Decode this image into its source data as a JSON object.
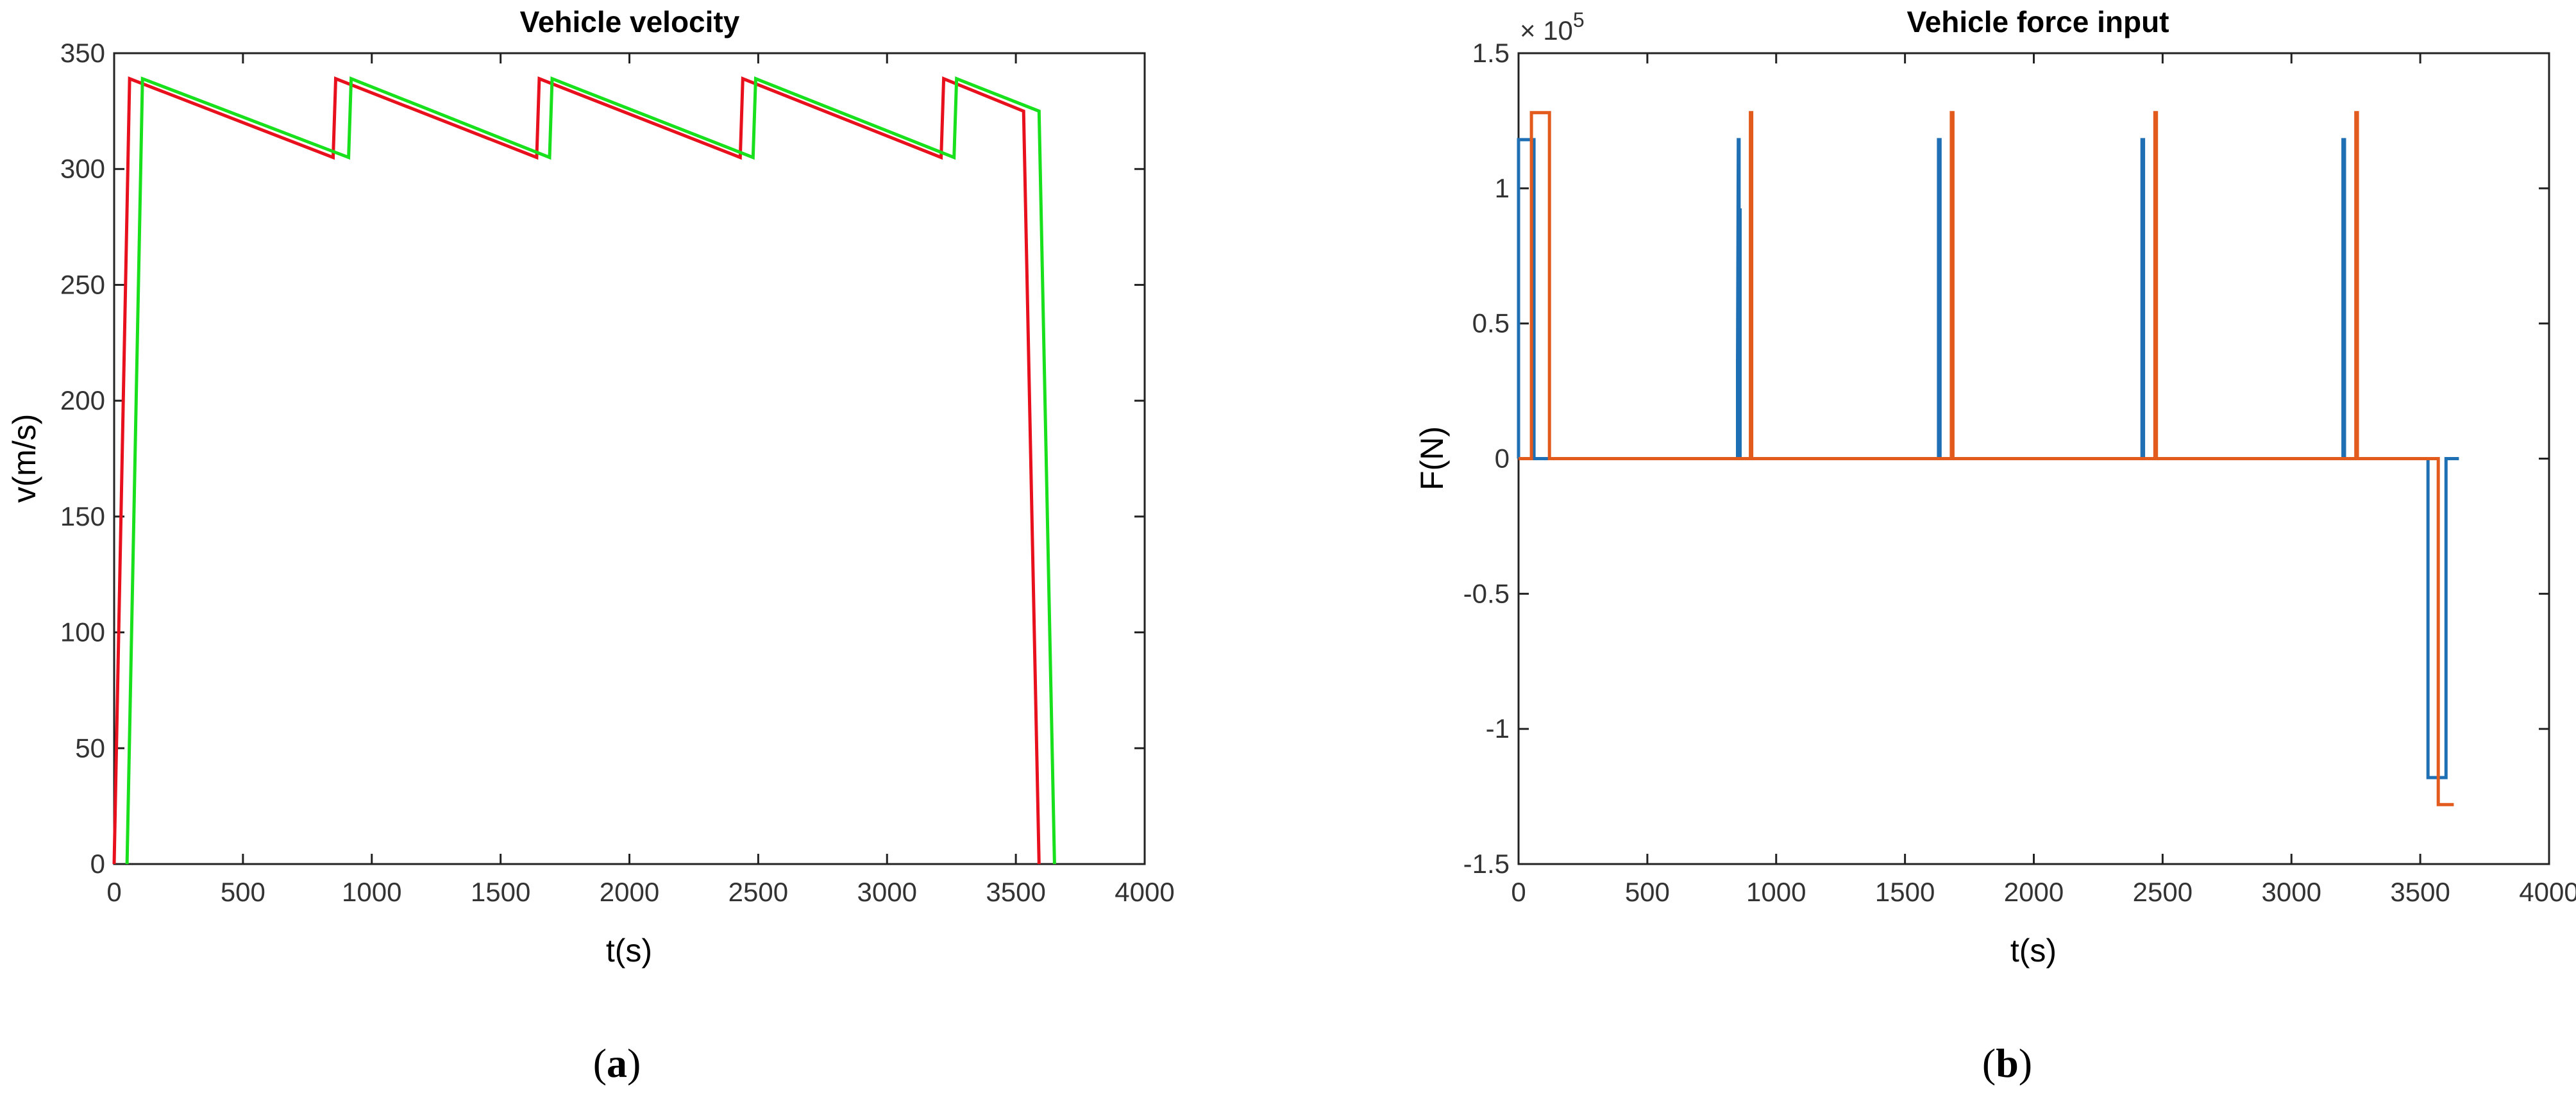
{
  "chart_data": [
    {
      "type": "line",
      "title": "Vehicle velocity",
      "xlabel": "t(s)",
      "ylabel": "v(m/s)",
      "xlim": [
        0,
        4000
      ],
      "ylim": [
        0,
        350
      ],
      "xticks": [
        "0",
        "500",
        "1000",
        "1500",
        "2000",
        "2500",
        "3000",
        "3500",
        "4000"
      ],
      "yticks": [
        "0",
        "50",
        "100",
        "150",
        "200",
        "250",
        "300",
        "350"
      ],
      "caption_letter": "a",
      "series": [
        {
          "color": "#e8101c",
          "x": [
            0,
            60,
            850,
            860,
            1640,
            1650,
            2430,
            2440,
            3210,
            3220,
            3530,
            3590
          ],
          "y": [
            0,
            339,
            305,
            339,
            305,
            339,
            305,
            339,
            305,
            339,
            325,
            0
          ]
        },
        {
          "color": "#18e01c",
          "x": [
            50,
            110,
            910,
            920,
            1690,
            1700,
            2480,
            2490,
            3260,
            3270,
            3590,
            3650
          ],
          "y": [
            0,
            339,
            305,
            339,
            305,
            339,
            305,
            339,
            305,
            339,
            325,
            0
          ]
        }
      ]
    },
    {
      "type": "line",
      "title": "Vehicle force input",
      "xlabel": "t(s)",
      "ylabel": "F(N)",
      "exponent_base": "× 10",
      "exponent_power": "5",
      "xlim": [
        0,
        4000
      ],
      "ylim": [
        -1.5,
        1.5
      ],
      "xticks": [
        "0",
        "500",
        "1000",
        "1500",
        "2000",
        "2500",
        "3000",
        "3500",
        "4000"
      ],
      "yticks": [
        "-1.5",
        "-1",
        "-0.5",
        "0",
        "0.5",
        "1",
        "1.5"
      ],
      "caption_letter": "b",
      "series": [
        {
          "color": "#1f6fb5",
          "x": [
            0,
            0,
            60,
            60,
            850,
            850,
            853,
            856,
            856,
            860,
            860,
            1630,
            1630,
            1636,
            1636,
            2420,
            2420,
            2426,
            2426,
            3200,
            3200,
            3206,
            3206,
            3530,
            3530,
            3600,
            3600,
            3650
          ],
          "y": [
            0,
            1.18,
            1.18,
            0,
            0,
            0.35,
            1.18,
            1.18,
            0.92,
            0.92,
            0,
            0,
            1.18,
            1.18,
            0,
            0,
            1.18,
            1.18,
            0,
            0,
            1.18,
            1.18,
            0,
            0,
            -1.18,
            -1.18,
            0,
            0
          ]
        },
        {
          "color": "#e25a1c",
          "x": [
            0,
            50,
            50,
            120,
            120,
            900,
            900,
            905,
            905,
            1680,
            1680,
            1686,
            1686,
            2470,
            2470,
            2476,
            2476,
            3250,
            3250,
            3256,
            3256,
            3570,
            3570,
            3630
          ],
          "y": [
            0,
            0,
            1.28,
            1.28,
            0,
            0,
            1.28,
            1.28,
            0,
            0,
            1.28,
            1.28,
            0,
            0,
            1.28,
            1.28,
            0,
            0,
            1.28,
            1.28,
            0,
            0,
            -1.28,
            -1.28
          ]
        }
      ]
    }
  ]
}
